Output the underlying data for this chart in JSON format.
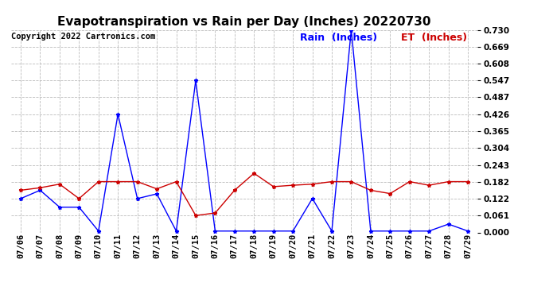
{
  "title": "Evapotranspiration vs Rain per Day (Inches) 20220730",
  "copyright": "Copyright 2022 Cartronics.com",
  "x_labels": [
    "07/06",
    "07/07",
    "07/08",
    "07/09",
    "07/10",
    "07/11",
    "07/12",
    "07/13",
    "07/14",
    "07/15",
    "07/16",
    "07/17",
    "07/18",
    "07/19",
    "07/20",
    "07/21",
    "07/22",
    "07/23",
    "07/24",
    "07/25",
    "07/26",
    "07/27",
    "07/28",
    "07/29"
  ],
  "rain_inches": [
    0.122,
    0.152,
    0.091,
    0.091,
    0.005,
    0.426,
    0.122,
    0.139,
    0.005,
    0.547,
    0.005,
    0.005,
    0.005,
    0.005,
    0.005,
    0.122,
    0.005,
    0.73,
    0.005,
    0.005,
    0.005,
    0.005,
    0.03,
    0.005
  ],
  "et_inches": [
    0.152,
    0.161,
    0.174,
    0.122,
    0.183,
    0.183,
    0.183,
    0.157,
    0.183,
    0.061,
    0.07,
    0.152,
    0.213,
    0.165,
    0.17,
    0.174,
    0.183,
    0.183,
    0.152,
    0.14,
    0.183,
    0.17,
    0.183,
    0.183
  ],
  "rain_color": "#0000ff",
  "et_color": "#cc0000",
  "background_color": "#ffffff",
  "grid_color": "#bbbbbb",
  "ylim": [
    0.0,
    0.73
  ],
  "yticks": [
    0.0,
    0.061,
    0.122,
    0.182,
    0.243,
    0.304,
    0.365,
    0.426,
    0.487,
    0.547,
    0.608,
    0.669,
    0.73
  ],
  "legend_rain_label": "Rain  (Inches)",
  "legend_et_label": "ET  (Inches)",
  "title_fontsize": 11,
  "copyright_fontsize": 7.5,
  "tick_fontsize": 7.5,
  "legend_fontsize": 9
}
